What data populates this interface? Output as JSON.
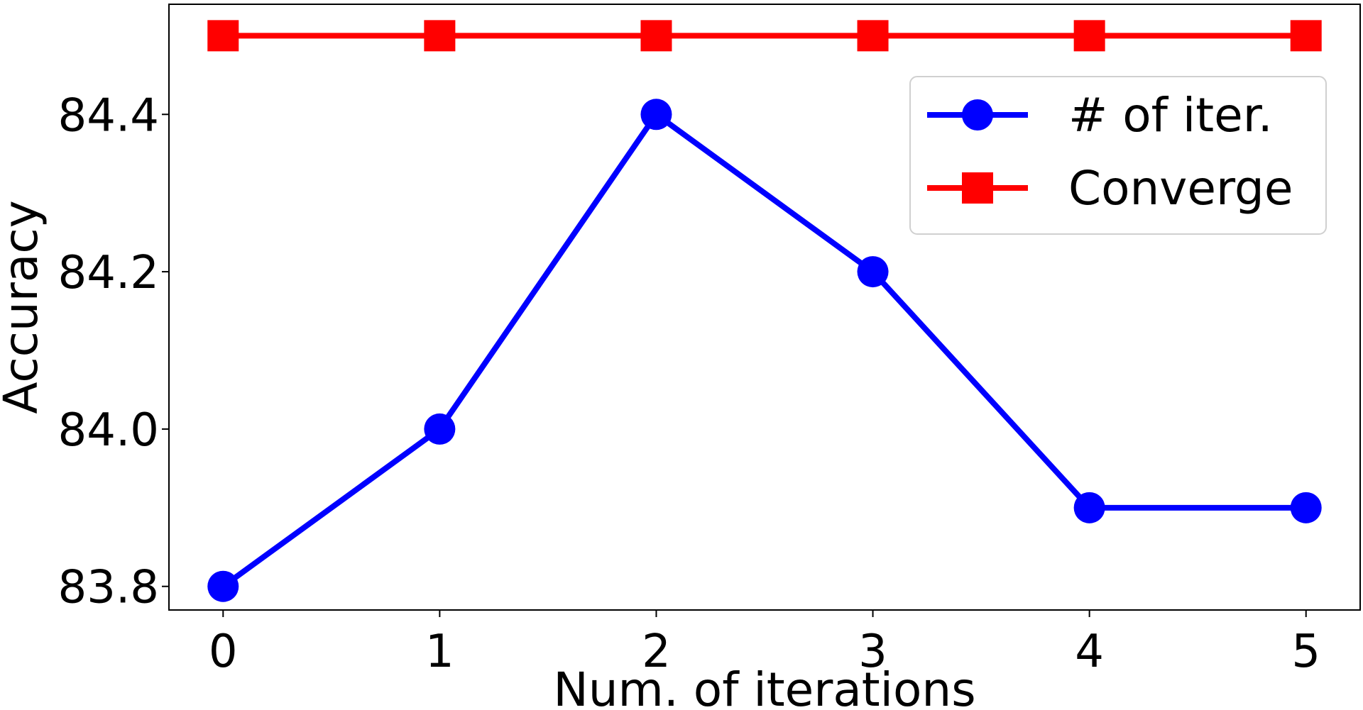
{
  "chart_data": {
    "type": "line",
    "title": "",
    "xlabel": "Num. of iterations",
    "ylabel": "Accuracy",
    "x": [
      0,
      1,
      2,
      3,
      4,
      5
    ],
    "xticks": [
      "0",
      "1",
      "2",
      "3",
      "4",
      "5"
    ],
    "yticks": [
      "83.8",
      "84.0",
      "84.2",
      "84.4"
    ],
    "xlim": [
      -0.25,
      5.25
    ],
    "ylim": [
      83.77,
      84.54
    ],
    "grid": false,
    "legend_position": "top-right",
    "series": [
      {
        "name": "# of iter.",
        "values": [
          83.8,
          84.0,
          84.4,
          84.2,
          83.9,
          83.9
        ],
        "color": "#0000ff",
        "marker": "circle"
      },
      {
        "name": "Converge",
        "values": [
          84.5,
          84.5,
          84.5,
          84.5,
          84.5,
          84.5
        ],
        "color": "#ff0000",
        "marker": "square"
      }
    ]
  }
}
